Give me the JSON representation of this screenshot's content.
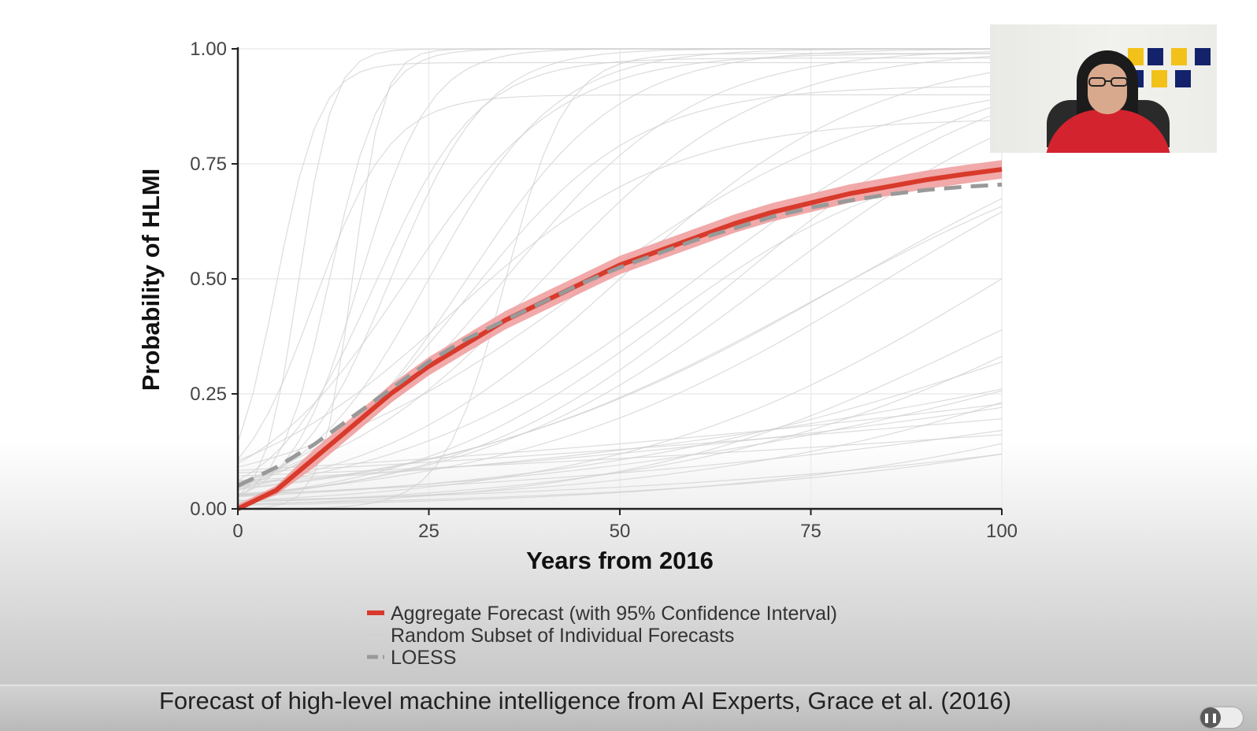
{
  "chart_data": {
    "type": "line",
    "title": "",
    "xlabel": "Years from 2016",
    "ylabel": "Probability of HLMI",
    "xlim": [
      0,
      100
    ],
    "ylim": [
      0,
      1
    ],
    "x_ticks": [
      "0",
      "25",
      "50",
      "75",
      "100"
    ],
    "y_ticks": [
      "0.00",
      "0.25",
      "0.50",
      "0.75",
      "1.00"
    ],
    "grid": true,
    "legend_position": "bottom",
    "series": [
      {
        "name": "Aggregate Forecast (with 95% Confidence Interval)",
        "color": "#d83a2b",
        "x": [
          0,
          5,
          10,
          15,
          20,
          25,
          30,
          35,
          40,
          45,
          50,
          55,
          60,
          65,
          70,
          75,
          80,
          85,
          90,
          95,
          100
        ],
        "y": [
          0.0,
          0.04,
          0.11,
          0.18,
          0.25,
          0.31,
          0.36,
          0.41,
          0.45,
          0.49,
          0.53,
          0.56,
          0.59,
          0.62,
          0.645,
          0.665,
          0.685,
          0.7,
          0.715,
          0.727,
          0.738
        ],
        "ci_lower": [
          0.0,
          0.03,
          0.09,
          0.16,
          0.23,
          0.29,
          0.34,
          0.39,
          0.43,
          0.47,
          0.51,
          0.54,
          0.57,
          0.6,
          0.625,
          0.645,
          0.665,
          0.68,
          0.695,
          0.707,
          0.718
        ],
        "ci_upper": [
          0.01,
          0.05,
          0.13,
          0.2,
          0.27,
          0.33,
          0.38,
          0.43,
          0.47,
          0.51,
          0.55,
          0.58,
          0.61,
          0.64,
          0.665,
          0.685,
          0.705,
          0.72,
          0.735,
          0.747,
          0.758
        ]
      },
      {
        "name": "Random Subset of Individual Forecasts",
        "color": "#d0d0d0",
        "curves": [
          {
            "k": 0.45,
            "x0": 8,
            "max": 1.0
          },
          {
            "k": 0.3,
            "x0": 12,
            "max": 1.0
          },
          {
            "k": 0.22,
            "x0": 16,
            "max": 1.0
          },
          {
            "k": 0.16,
            "x0": 20,
            "max": 1.0
          },
          {
            "k": 0.12,
            "x0": 25,
            "max": 1.0
          },
          {
            "k": 0.1,
            "x0": 30,
            "max": 1.0
          },
          {
            "k": 0.08,
            "x0": 35,
            "max": 1.0
          },
          {
            "k": 0.07,
            "x0": 40,
            "max": 1.0
          },
          {
            "k": 0.06,
            "x0": 50,
            "max": 1.0
          },
          {
            "k": 0.05,
            "x0": 60,
            "max": 1.0
          },
          {
            "k": 0.05,
            "x0": 70,
            "max": 1.0
          },
          {
            "k": 0.04,
            "x0": 85,
            "max": 1.0
          },
          {
            "k": 0.04,
            "x0": 100,
            "max": 1.0
          },
          {
            "k": 0.035,
            "x0": 120,
            "max": 1.0
          },
          {
            "k": 0.03,
            "x0": 140,
            "max": 1.0
          },
          {
            "k": 0.03,
            "x0": 160,
            "max": 1.0
          },
          {
            "k": 0.025,
            "x0": 180,
            "max": 1.0
          },
          {
            "k": 0.02,
            "x0": 200,
            "max": 1.0
          },
          {
            "k": 0.2,
            "x0": 10,
            "max": 0.9
          },
          {
            "k": 0.09,
            "x0": 30,
            "max": 0.92
          },
          {
            "k": 0.05,
            "x0": 45,
            "max": 0.95
          },
          {
            "k": 0.06,
            "x0": 55,
            "max": 0.8
          },
          {
            "k": 0.04,
            "x0": 75,
            "max": 0.9
          },
          {
            "k": 0.35,
            "x0": 5,
            "max": 0.97
          },
          {
            "k": 0.15,
            "x0": 18,
            "max": 0.98
          },
          {
            "k": 0.07,
            "x0": 28,
            "max": 0.85
          },
          {
            "k": 0.045,
            "x0": 95,
            "max": 0.7
          },
          {
            "k": 0.03,
            "x0": 110,
            "max": 0.75
          },
          {
            "k": 0.025,
            "x0": 130,
            "max": 0.8
          },
          {
            "k": 0.018,
            "x0": 150,
            "max": 0.9
          },
          {
            "k": 0.015,
            "x0": 170,
            "max": 0.85
          },
          {
            "k": 0.012,
            "x0": 190,
            "max": 0.9
          },
          {
            "k": 0.1,
            "x0": 22,
            "max": 0.99
          },
          {
            "k": 0.055,
            "x0": 65,
            "max": 0.99
          },
          {
            "k": 0.038,
            "x0": 80,
            "max": 0.99
          },
          {
            "k": 0.5,
            "x0": 15,
            "max": 1.0
          },
          {
            "k": 0.25,
            "x0": 35,
            "max": 0.99
          },
          {
            "k": 0.013,
            "x0": 120,
            "max": 0.45
          },
          {
            "k": 0.02,
            "x0": 140,
            "max": 0.55
          },
          {
            "k": 0.01,
            "x0": 200,
            "max": 0.6
          }
        ]
      },
      {
        "name": "LOESS",
        "color": "#999999",
        "dashed": true,
        "x": [
          0,
          5,
          10,
          15,
          20,
          25,
          30,
          35,
          40,
          45,
          50,
          55,
          60,
          65,
          70,
          75,
          80,
          85,
          90,
          95,
          100
        ],
        "y": [
          0.05,
          0.09,
          0.14,
          0.2,
          0.26,
          0.32,
          0.37,
          0.41,
          0.45,
          0.49,
          0.525,
          0.555,
          0.585,
          0.61,
          0.635,
          0.655,
          0.67,
          0.683,
          0.693,
          0.7,
          0.705
        ]
      }
    ]
  },
  "caption": "Forecast of high-level machine intelligence from AI Experts, Grace et al. (2016)",
  "colors": {
    "aggregate": "#d83a2b",
    "confidence_band": "#ee9a9a",
    "loess": "#999999",
    "individual": "#d0d0d0",
    "grid": "#ececec"
  },
  "webcam": {
    "icon": "video-feed"
  },
  "player": {
    "pause_icon": "pause-icon"
  }
}
